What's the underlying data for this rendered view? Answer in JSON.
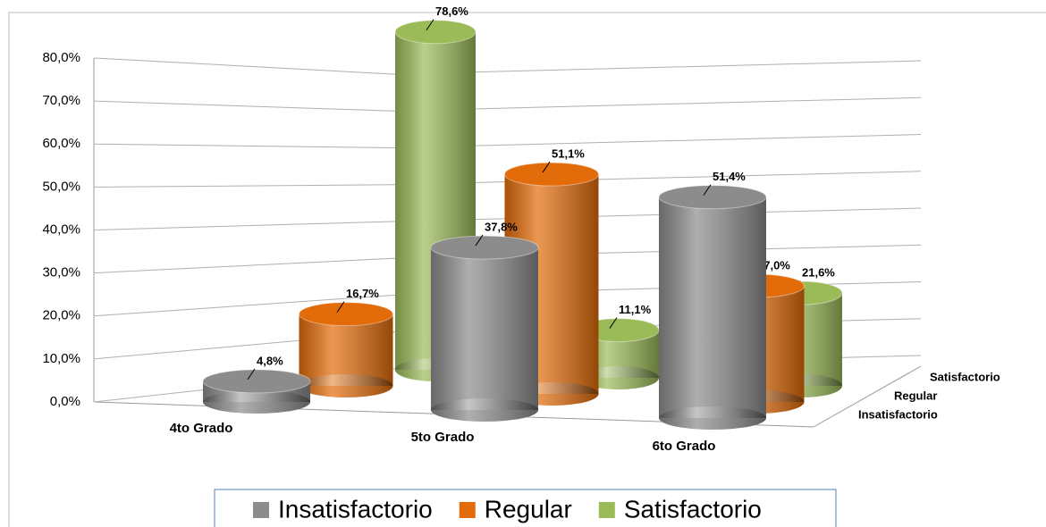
{
  "chart_data": {
    "type": "bar3d",
    "categories": [
      "4to Grado",
      "5to Grado",
      "6to Grado"
    ],
    "series": [
      {
        "name": "Insatisfactorio",
        "color": "#8c8c8c",
        "values": [
          4.8,
          37.8,
          51.4
        ],
        "value_labels": [
          "4,8%",
          "37,8%",
          "51,4%"
        ]
      },
      {
        "name": "Regular",
        "color": "#e36c0a",
        "values": [
          16.7,
          51.1,
          27.0
        ],
        "value_labels": [
          "16,7%",
          "51,1%",
          "27,0%"
        ]
      },
      {
        "name": "Satisfactorio",
        "color": "#9bbb59",
        "values": [
          78.6,
          11.1,
          21.6
        ],
        "value_labels": [
          "78,6%",
          "11,1%",
          "21,6%"
        ]
      }
    ],
    "ylim": [
      0,
      80
    ],
    "yticks": [
      {
        "value": 0,
        "label": "0,0%"
      },
      {
        "value": 10,
        "label": "10,0%"
      },
      {
        "value": 20,
        "label": "20,0%"
      },
      {
        "value": 30,
        "label": "30,0%"
      },
      {
        "value": 40,
        "label": "40,0%"
      },
      {
        "value": 50,
        "label": "50,0%"
      },
      {
        "value": 60,
        "label": "60,0%"
      },
      {
        "value": 70,
        "label": "70,0%"
      },
      {
        "value": 80,
        "label": "80,0%"
      }
    ],
    "grid": true,
    "legend": "bottom"
  }
}
